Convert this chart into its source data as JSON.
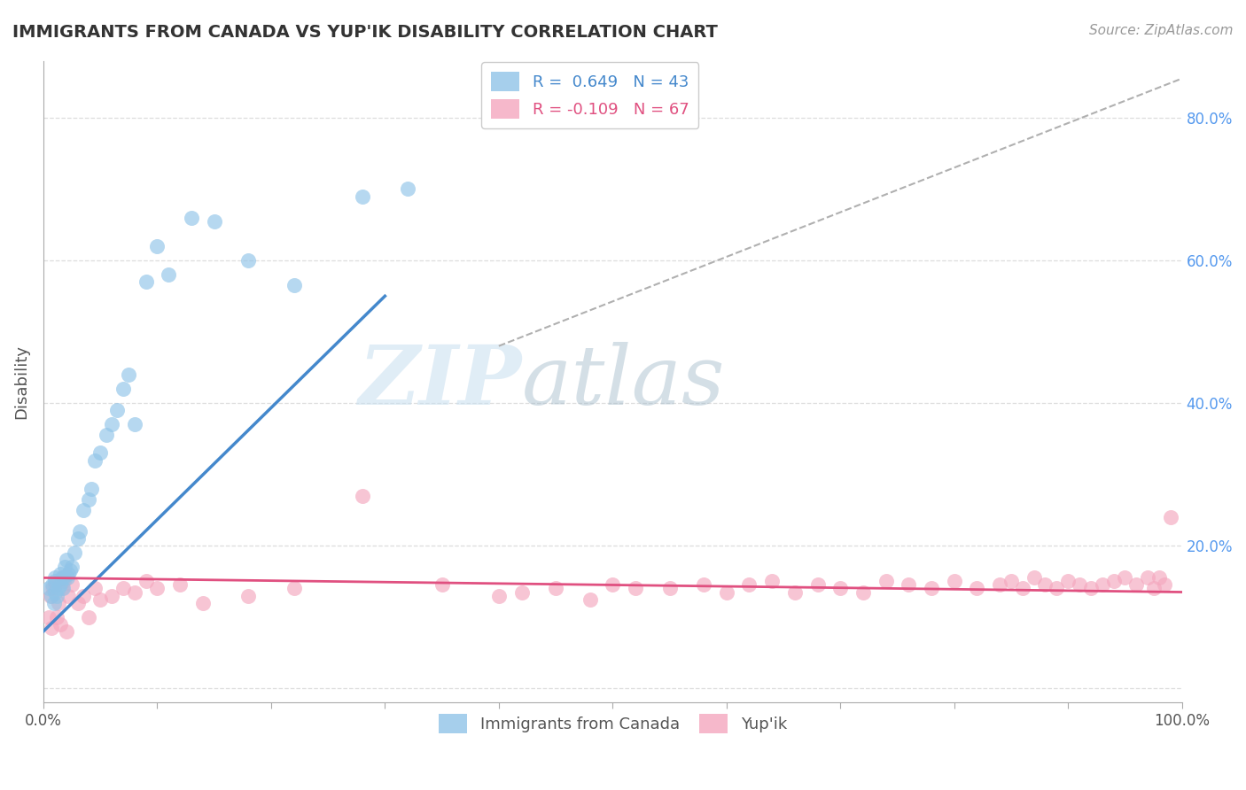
{
  "title": "IMMIGRANTS FROM CANADA VS YUP'IK DISABILITY CORRELATION CHART",
  "source": "Source: ZipAtlas.com",
  "ylabel": "Disability",
  "legend_blue_label": "R =  0.649   N = 43",
  "legend_pink_label": "R = -0.109   N = 67",
  "watermark_zip": "ZIP",
  "watermark_atlas": "atlas",
  "xlim": [
    0.0,
    1.0
  ],
  "ylim": [
    -0.02,
    0.88
  ],
  "blue_scatter_x": [
    0.005,
    0.007,
    0.008,
    0.009,
    0.01,
    0.01,
    0.01,
    0.012,
    0.013,
    0.015,
    0.015,
    0.016,
    0.017,
    0.018,
    0.019,
    0.02,
    0.021,
    0.022,
    0.023,
    0.025,
    0.027,
    0.03,
    0.032,
    0.035,
    0.04,
    0.042,
    0.045,
    0.05,
    0.055,
    0.06,
    0.065,
    0.07,
    0.075,
    0.08,
    0.09,
    0.1,
    0.11,
    0.13,
    0.15,
    0.18,
    0.22,
    0.28,
    0.32
  ],
  "blue_scatter_y": [
    0.14,
    0.13,
    0.145,
    0.12,
    0.135,
    0.15,
    0.155,
    0.13,
    0.14,
    0.145,
    0.16,
    0.155,
    0.14,
    0.155,
    0.17,
    0.18,
    0.155,
    0.16,
    0.165,
    0.17,
    0.19,
    0.21,
    0.22,
    0.25,
    0.265,
    0.28,
    0.32,
    0.33,
    0.355,
    0.37,
    0.39,
    0.42,
    0.44,
    0.37,
    0.57,
    0.62,
    0.58,
    0.66,
    0.655,
    0.6,
    0.565,
    0.69,
    0.7
  ],
  "pink_scatter_x": [
    0.005,
    0.006,
    0.007,
    0.008,
    0.01,
    0.012,
    0.013,
    0.015,
    0.016,
    0.018,
    0.02,
    0.022,
    0.025,
    0.03,
    0.035,
    0.04,
    0.045,
    0.05,
    0.06,
    0.07,
    0.08,
    0.09,
    0.1,
    0.12,
    0.14,
    0.18,
    0.22,
    0.28,
    0.35,
    0.4,
    0.42,
    0.45,
    0.48,
    0.5,
    0.52,
    0.55,
    0.58,
    0.6,
    0.62,
    0.64,
    0.66,
    0.68,
    0.7,
    0.72,
    0.74,
    0.76,
    0.78,
    0.8,
    0.82,
    0.84,
    0.85,
    0.86,
    0.87,
    0.88,
    0.89,
    0.9,
    0.91,
    0.92,
    0.93,
    0.94,
    0.95,
    0.96,
    0.97,
    0.975,
    0.98,
    0.985,
    0.99
  ],
  "pink_scatter_y": [
    0.1,
    0.13,
    0.085,
    0.14,
    0.145,
    0.1,
    0.12,
    0.09,
    0.14,
    0.15,
    0.08,
    0.13,
    0.145,
    0.12,
    0.13,
    0.1,
    0.14,
    0.125,
    0.13,
    0.14,
    0.135,
    0.15,
    0.14,
    0.145,
    0.12,
    0.13,
    0.14,
    0.27,
    0.145,
    0.13,
    0.135,
    0.14,
    0.125,
    0.145,
    0.14,
    0.14,
    0.145,
    0.135,
    0.145,
    0.15,
    0.135,
    0.145,
    0.14,
    0.135,
    0.15,
    0.145,
    0.14,
    0.15,
    0.14,
    0.145,
    0.15,
    0.14,
    0.155,
    0.145,
    0.14,
    0.15,
    0.145,
    0.14,
    0.145,
    0.15,
    0.155,
    0.145,
    0.155,
    0.14,
    0.155,
    0.145,
    0.24
  ],
  "blue_line_x": [
    0.0,
    0.3
  ],
  "blue_line_y": [
    0.08,
    0.55
  ],
  "pink_line_x": [
    0.0,
    1.0
  ],
  "pink_line_y": [
    0.155,
    0.135
  ],
  "ref_line_x": [
    0.4,
    1.0
  ],
  "ref_line_y": [
    0.48,
    0.855
  ],
  "blue_color": "#90c4e8",
  "pink_color": "#f4a7be",
  "blue_line_color": "#4488cc",
  "pink_line_color": "#e05080",
  "ref_line_color": "#b0b0b0",
  "background_color": "#ffffff",
  "title_color": "#333333",
  "source_color": "#999999",
  "grid_color": "#dddddd",
  "axis_color": "#aaaaaa",
  "tick_label_color": "#555555",
  "right_tick_color": "#5599ee"
}
